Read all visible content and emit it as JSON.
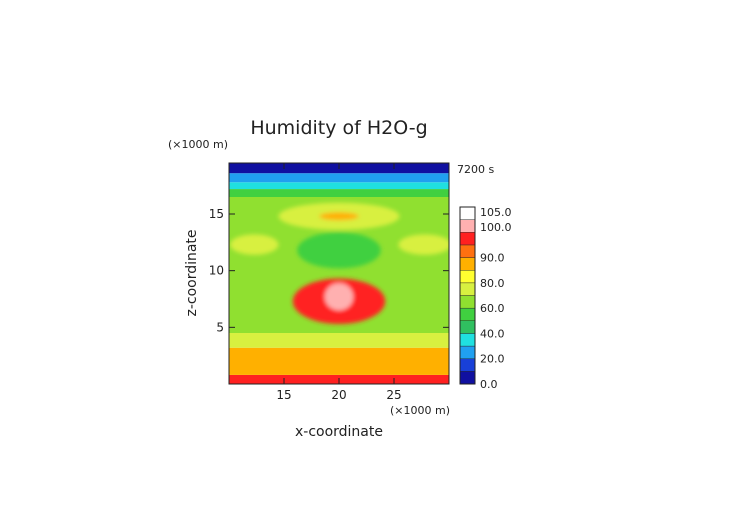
{
  "chart_data": {
    "type": "heatmap",
    "title": "Humidity of H2O-g",
    "time_label": "7200 s",
    "xlabel": "x-coordinate",
    "ylabel": "z-coordinate",
    "x_unit": "(×1000 m)",
    "y_unit": "(×1000 m)",
    "xlim": [
      10,
      30
    ],
    "ylim": [
      0,
      19.5
    ],
    "x_ticks": [
      15,
      20,
      25
    ],
    "y_ticks": [
      5,
      10,
      15
    ],
    "colorbar": {
      "ticks": [
        "0.0",
        "20.0",
        "40.0",
        "60.0",
        "80.0",
        "90.0",
        "100.0",
        "105.0"
      ],
      "colors": [
        "#1010a0",
        "#1840d8",
        "#20a0f0",
        "#20e0e0",
        "#30c060",
        "#40d040",
        "#90e030",
        "#d8f040",
        "#ffff30",
        "#ffb000",
        "#ff7010",
        "#ff2020",
        "#ffb0b0",
        "#ffffff"
      ]
    },
    "layers": [
      {
        "z": [
          0,
          0.8
        ],
        "humidity": 95
      },
      {
        "z": [
          0.8,
          3.2
        ],
        "humidity": 88
      },
      {
        "z": [
          3.2,
          4.5
        ],
        "humidity": 75
      },
      {
        "z": [
          4.5,
          16.5
        ],
        "humidity": 65
      },
      {
        "z": [
          16.5,
          17.2
        ],
        "humidity": 50
      },
      {
        "z": [
          17.2,
          17.8
        ],
        "humidity": 35
      },
      {
        "z": [
          17.8,
          18.6
        ],
        "humidity": 20
      },
      {
        "z": [
          18.6,
          19.5
        ],
        "humidity": 5
      }
    ],
    "features": [
      {
        "name": "upper moist layer",
        "x": 20,
        "z": 14.8,
        "rx": 5.5,
        "rz": 1.2,
        "humidity": 78
      },
      {
        "name": "upper moist core",
        "x": 20,
        "z": 14.8,
        "rx": 1.8,
        "rz": 0.35,
        "humidity": 88
      },
      {
        "name": "central dry pocket",
        "x": 20,
        "z": 11.8,
        "rx": 3.8,
        "rz": 1.6,
        "humidity": 55
      },
      {
        "name": "left moist patch",
        "x": 12.3,
        "z": 12.3,
        "rx": 2.2,
        "rz": 0.9,
        "humidity": 78
      },
      {
        "name": "right moist patch",
        "x": 27.8,
        "z": 12.3,
        "rx": 2.4,
        "rz": 0.9,
        "humidity": 78
      },
      {
        "name": "convective cloud",
        "x": 20,
        "z": 7.3,
        "rx": 4.2,
        "rz": 2.0,
        "humidity": 97
      },
      {
        "name": "cloud core",
        "x": 20,
        "z": 7.7,
        "rx": 1.3,
        "rz": 1.2,
        "humidity": 102
      }
    ]
  }
}
